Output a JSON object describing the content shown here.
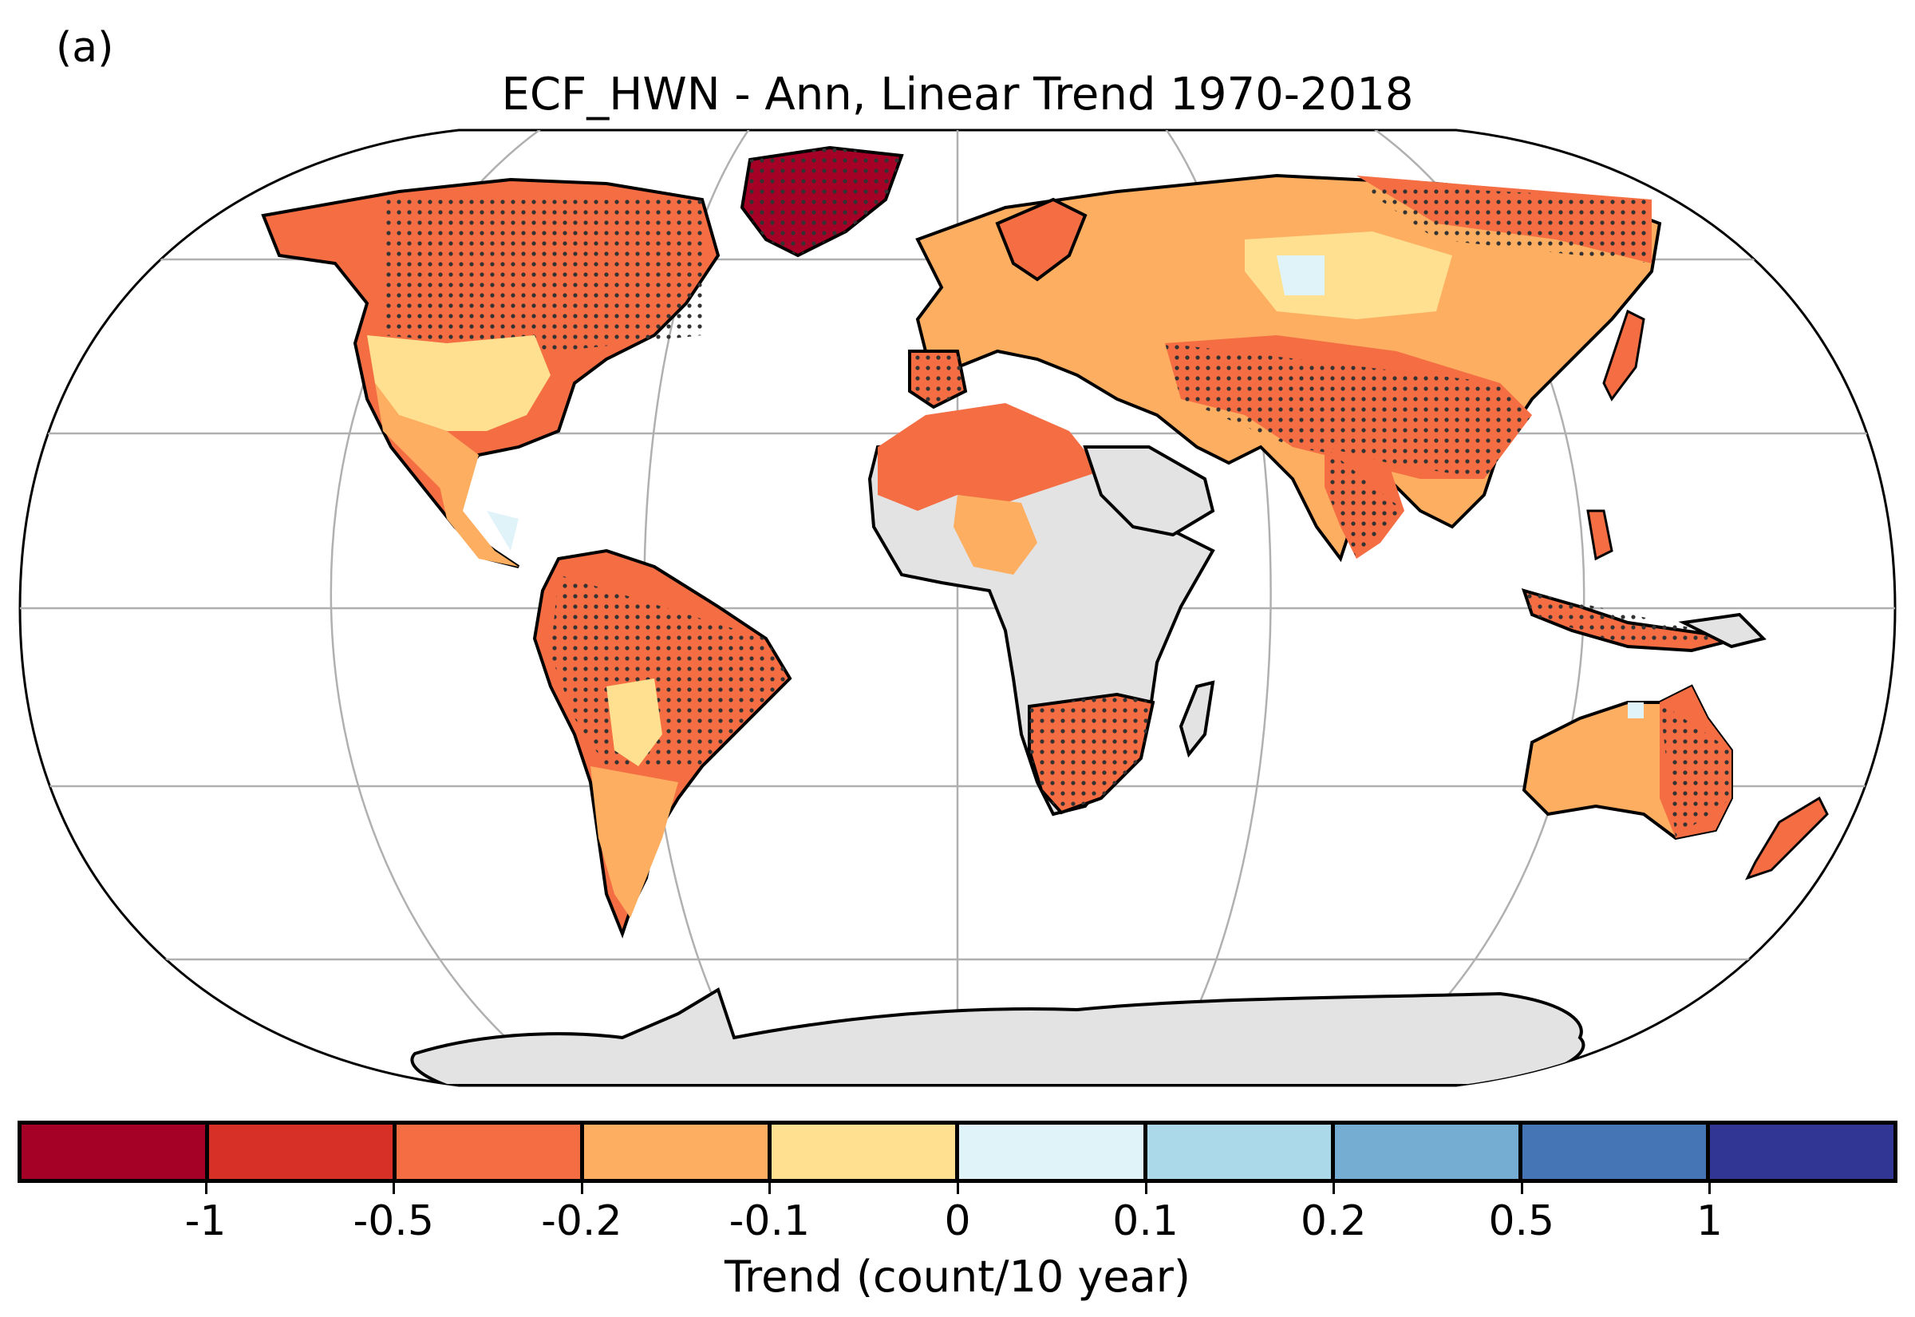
{
  "panel_label": "(a)",
  "title": "ECF_HWN - Ann, Linear Trend 1970-2018",
  "colorbar": {
    "label": "Trend (count/10 year)",
    "bins": [
      {
        "color": "#a50026"
      },
      {
        "color": "#d73027"
      },
      {
        "color": "#f46d43"
      },
      {
        "color": "#fdae61"
      },
      {
        "color": "#fee090"
      },
      {
        "color": "#e0f3f8"
      },
      {
        "color": "#abd9e9"
      },
      {
        "color": "#74add1"
      },
      {
        "color": "#4575b4"
      },
      {
        "color": "#313695"
      }
    ],
    "ticks": [
      "-1",
      "-0.5",
      "-0.2",
      "-0.1",
      "0",
      "0.1",
      "0.2",
      "0.5",
      "1"
    ]
  },
  "colors": {
    "no_data_land": "#e3e3e3",
    "gridline": "#b0b0b0",
    "coastline": "#000000",
    "stipple": "#333333"
  }
}
